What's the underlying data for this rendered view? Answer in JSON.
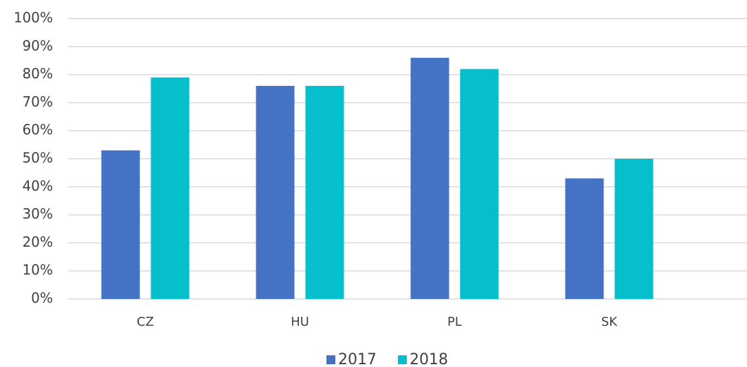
{
  "chart_data": {
    "type": "bar",
    "categories": [
      "CZ",
      "HU",
      "PL",
      "SK"
    ],
    "series": [
      {
        "name": "2017",
        "color": "#4472c4",
        "values": [
          53,
          76,
          86,
          43
        ]
      },
      {
        "name": "2018",
        "color": "#05bfcc",
        "values": [
          79,
          76,
          82,
          50
        ]
      }
    ],
    "ylim": [
      0,
      100
    ],
    "yticks": [
      {
        "value": 0,
        "label": "0%"
      },
      {
        "value": 10,
        "label": "10%"
      },
      {
        "value": 20,
        "label": "20%"
      },
      {
        "value": 30,
        "label": "30%"
      },
      {
        "value": 40,
        "label": "40%"
      },
      {
        "value": 50,
        "label": "50%"
      },
      {
        "value": 60,
        "label": "60%"
      },
      {
        "value": 70,
        "label": "70%"
      },
      {
        "value": 80,
        "label": "80%"
      },
      {
        "value": 90,
        "label": "90%"
      },
      {
        "value": 100,
        "label": "100%"
      }
    ],
    "grid": true,
    "legend": "bottom"
  }
}
